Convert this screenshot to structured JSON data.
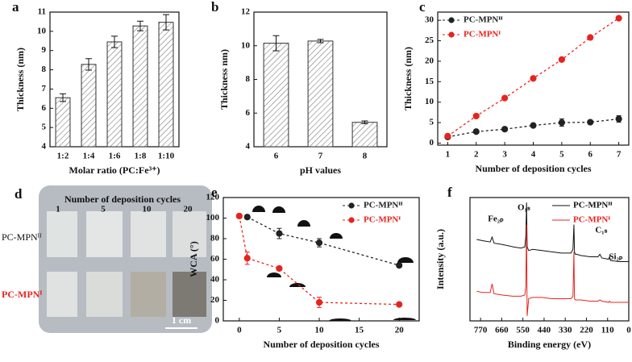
{
  "chart_data": [
    {
      "label": "a",
      "type": "bar",
      "categories": [
        "1:2",
        "1:4",
        "1:6",
        "1:8",
        "1:10"
      ],
      "values": [
        6.55,
        8.28,
        9.45,
        10.28,
        10.47
      ],
      "errors": [
        0.2,
        0.3,
        0.3,
        0.25,
        0.4
      ],
      "ylim": [
        4,
        11
      ],
      "yticks": [
        4,
        5,
        6,
        7,
        8,
        9,
        10,
        11
      ],
      "xlabel": "Molar ratio (PC:Fe³⁺)",
      "ylabel": "Thickness (nm)",
      "color": "#ffffff",
      "hatch": true
    },
    {
      "label": "b",
      "type": "bar",
      "categories": [
        "6",
        "7",
        "8"
      ],
      "values": [
        10.15,
        10.28,
        5.45
      ],
      "errors": [
        0.45,
        0.1,
        0.08
      ],
      "ylim": [
        4,
        12
      ],
      "yticks": [
        4,
        6,
        8,
        10,
        12
      ],
      "xlabel": "pH values",
      "ylabel": "Thickness nm)",
      "color": "#ffffff",
      "hatch": true
    },
    {
      "label": "c",
      "type": "line",
      "xlim": [
        0.65,
        7.35
      ],
      "xticks": [
        1,
        2,
        3,
        4,
        5,
        6,
        7
      ],
      "ylim": [
        -0.5,
        32
      ],
      "yticks": [
        0,
        5,
        10,
        15,
        20,
        25,
        30
      ],
      "xlabel": "Number of deposition cycles",
      "ylabel": "Thickness (nm)",
      "legend": "upper left",
      "dashed": true,
      "markers": true,
      "series": [
        {
          "name": "PC-MPNᴵᴵ",
          "color": "#222222",
          "x": [
            1,
            2,
            3,
            4,
            5,
            6,
            7
          ],
          "values": [
            1.5,
            2.8,
            3.4,
            4.3,
            5.0,
            5.1,
            5.9
          ],
          "errors": [
            0.3,
            0.3,
            0.3,
            0.3,
            0.9,
            0.3,
            0.8
          ]
        },
        {
          "name": "PC-MPNᴵ",
          "color": "#e8231e",
          "x": [
            1,
            2,
            3,
            4,
            5,
            6,
            7
          ],
          "values": [
            1.7,
            6.6,
            11.0,
            15.8,
            20.4,
            25.8,
            30.5
          ]
        }
      ]
    },
    {
      "label": "e",
      "type": "line",
      "xlim": [
        -2,
        22.5
      ],
      "xticks": [
        0,
        5,
        10,
        15,
        20
      ],
      "ylim": [
        0,
        120
      ],
      "yticks": [
        0,
        20,
        40,
        60,
        80,
        100,
        120
      ],
      "xlabel": "Number of deposition cycles",
      "ylabel": "WCA (°)",
      "legend": "upper right",
      "dashed": true,
      "markers": true,
      "series": [
        {
          "name": "PC-MPNᴵᴵ",
          "color": "#222222",
          "x": [
            1,
            5,
            10,
            20
          ],
          "values": [
            101,
            85,
            76,
            54
          ],
          "errors": [
            2,
            5,
            4,
            2
          ]
        },
        {
          "name": "PC-MPNᴵ",
          "color": "#e8231e",
          "x": [
            0,
            1,
            5,
            10,
            20
          ],
          "values": [
            102,
            61,
            51,
            18,
            16
          ],
          "errors": [
            2,
            6,
            2,
            5,
            1
          ]
        }
      ]
    },
    {
      "label": "f",
      "type": "line",
      "xlim": [
        825,
        0
      ],
      "xticks": [
        770,
        660,
        550,
        440,
        330,
        220,
        110,
        0
      ],
      "ylim": [
        0,
        100
      ],
      "xlabel": "Binding energy (eV)",
      "ylabel": "Intensity (a.u.)",
      "legend": "upper right",
      "dashed": false,
      "markers": false,
      "annotations": [
        "Fe₂ₚ",
        "O₁ₛ",
        "C₁ₛ",
        "Si₂ₚ"
      ],
      "series": [
        {
          "name": "PC-MPNᴵᴵ",
          "color": "#111111",
          "x": [
            790,
            760,
            720,
            710,
            700,
            660,
            600,
            560,
            540,
            535,
            531,
            528,
            520,
            500,
            450,
            400,
            350,
            300,
            290,
            285,
            282,
            278,
            270,
            250,
            200,
            160,
            150,
            140,
            105,
            100,
            95,
            50,
            0
          ],
          "values": [
            66,
            65,
            64,
            68,
            63,
            62,
            60,
            59,
            60,
            68,
            96,
            60,
            57,
            58,
            57,
            56,
            55,
            55,
            58,
            78,
            56,
            54,
            54,
            53,
            52,
            52,
            54,
            51,
            50,
            52,
            49,
            48,
            48
          ]
        },
        {
          "name": "PC-MPNᴵ",
          "color": "#e8231e",
          "x": [
            790,
            760,
            720,
            710,
            700,
            660,
            600,
            560,
            540,
            535,
            531,
            528,
            520,
            500,
            450,
            400,
            350,
            300,
            290,
            285,
            282,
            278,
            270,
            250,
            200,
            160,
            150,
            140,
            105,
            100,
            95,
            50,
            0
          ],
          "values": [
            24,
            23,
            23,
            30,
            22,
            21,
            20,
            20,
            21,
            27,
            78,
            4,
            18,
            19,
            19,
            18,
            18,
            18,
            20,
            56,
            18,
            17,
            17,
            17,
            16,
            16,
            17,
            16,
            15,
            16,
            15,
            15,
            15
          ]
        }
      ]
    }
  ],
  "photo": {
    "label": "d",
    "title": "Number of deposition cycles",
    "columns": [
      "1",
      "5",
      "10",
      "20"
    ],
    "rows": [
      "PC-MPNᴵᴵ",
      "PC-MPNᴵ"
    ],
    "scale": "1 cm"
  }
}
